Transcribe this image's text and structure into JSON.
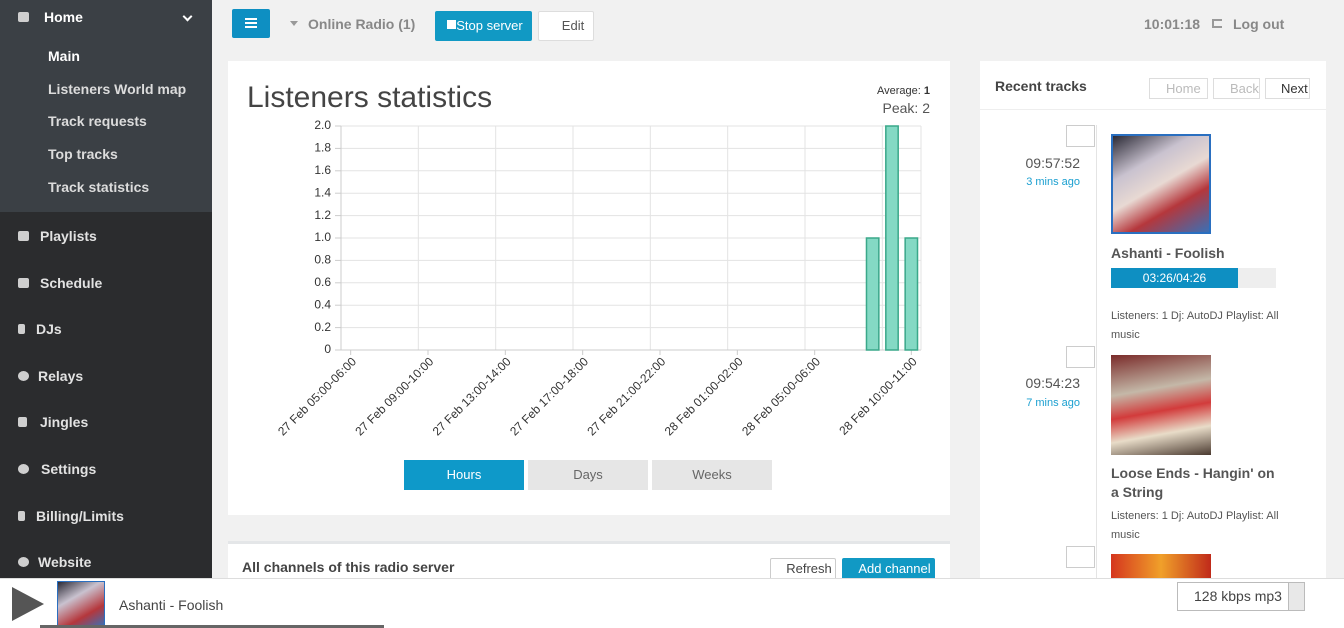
{
  "sidebar": {
    "home": "Home",
    "submenu": [
      "Main",
      "Listeners World map",
      "Track requests",
      "Top tracks",
      "Track statistics"
    ],
    "menu": [
      "Playlists",
      "Schedule",
      "DJs",
      "Relays",
      "Jingles",
      "Settings",
      "Billing/Limits",
      "Website"
    ]
  },
  "topbar": {
    "station": "Online Radio (1)",
    "stop": "Stop server",
    "edit": "Edit",
    "time": "10:01:18",
    "logout": "Log out"
  },
  "stats": {
    "title": "Listeners statistics",
    "average_label": "Average:",
    "average": 1,
    "peak_label": "Peak:",
    "peak": 2,
    "ranges": [
      "Hours",
      "Days",
      "Weeks"
    ],
    "chart": {
      "type": "bar",
      "color": "#84d9c4",
      "categories": [
        "27 Feb 05:00-06:00",
        null,
        null,
        null,
        "27 Feb 09:00-10:00",
        null,
        null,
        null,
        "27 Feb 13:00-14:00",
        null,
        null,
        null,
        "27 Feb 17:00-18:00",
        null,
        null,
        null,
        "27 Feb 21:00-22:00",
        null,
        null,
        null,
        "28 Feb 01:00-02:00",
        null,
        null,
        null,
        "28 Feb 05:00-06:00",
        null,
        null,
        null,
        null,
        "28 Feb 10:00-11:00"
      ],
      "values": [
        0,
        0,
        0,
        0,
        0,
        0,
        0,
        0,
        0,
        0,
        0,
        0,
        0,
        0,
        0,
        0,
        0,
        0,
        0,
        0,
        0,
        0,
        0,
        0,
        0,
        0,
        0,
        1,
        2,
        1
      ],
      "ylim": [
        0,
        2
      ],
      "yticks": [
        0,
        0.2,
        0.4,
        0.6,
        0.8,
        {
          "value": 1,
          "label": "1.0"
        },
        1.2,
        1.4,
        1.6,
        1.8,
        {
          "value": 2,
          "label": "2.0"
        }
      ],
      "grid": true
    }
  },
  "recent": {
    "title": "Recent tracks",
    "nav": [
      "Home",
      "Back",
      "Next"
    ],
    "tracks": [
      {
        "time": "09:57:52",
        "ago": "3 mins ago",
        "title": "Ashanti - Foolish",
        "progress": "03:26/04:26",
        "info": "Listeners: 1 Dj: AutoDJ Playlist: All music"
      },
      {
        "time": "09:54:23",
        "ago": "7 mins ago",
        "title": "Loose Ends - Hangin' on a String",
        "info": "Listeners: 1 Dj: AutoDJ Playlist: All music"
      }
    ]
  },
  "channels": {
    "title": "All channels of this radio server",
    "refresh": "Refresh",
    "add": "Add channel"
  },
  "player": {
    "track": "Ashanti - Foolish",
    "quality": "128 kbps mp3"
  }
}
